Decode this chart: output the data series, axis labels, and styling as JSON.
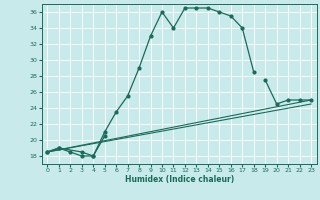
{
  "title": "",
  "xlabel": "Humidex (Indice chaleur)",
  "bg_color": "#c8eaea",
  "grid_color": "#ffffff",
  "line_color": "#1a6b5a",
  "xlim": [
    -0.5,
    23.5
  ],
  "ylim": [
    17,
    37
  ],
  "xticks": [
    0,
    1,
    2,
    3,
    4,
    5,
    6,
    7,
    8,
    9,
    10,
    11,
    12,
    13,
    14,
    15,
    16,
    17,
    18,
    19,
    20,
    21,
    22,
    23
  ],
  "yticks": [
    18,
    20,
    22,
    24,
    26,
    28,
    30,
    32,
    34,
    36
  ],
  "series1_x": [
    0,
    1,
    2,
    3,
    4,
    5,
    6,
    7,
    8,
    9,
    10,
    11,
    12,
    13,
    14,
    15,
    16,
    17,
    18
  ],
  "series1_y": [
    18.5,
    19.0,
    18.5,
    18.0,
    18.0,
    21.0,
    23.5,
    25.5,
    29.0,
    33.0,
    36.0,
    34.0,
    36.5,
    36.5,
    36.5,
    36.0,
    35.5,
    34.0,
    28.5
  ],
  "series2_x": [
    0,
    1,
    3,
    4,
    5,
    19,
    20,
    21,
    22,
    23
  ],
  "series2_y": [
    18.5,
    19.0,
    18.5,
    18.0,
    20.5,
    27.5,
    24.5,
    25.0,
    25.0,
    25.0
  ],
  "series3_x": [
    0,
    23
  ],
  "series3_y": [
    18.5,
    25.0
  ],
  "series4_x": [
    0,
    23
  ],
  "series4_y": [
    18.5,
    24.5
  ]
}
